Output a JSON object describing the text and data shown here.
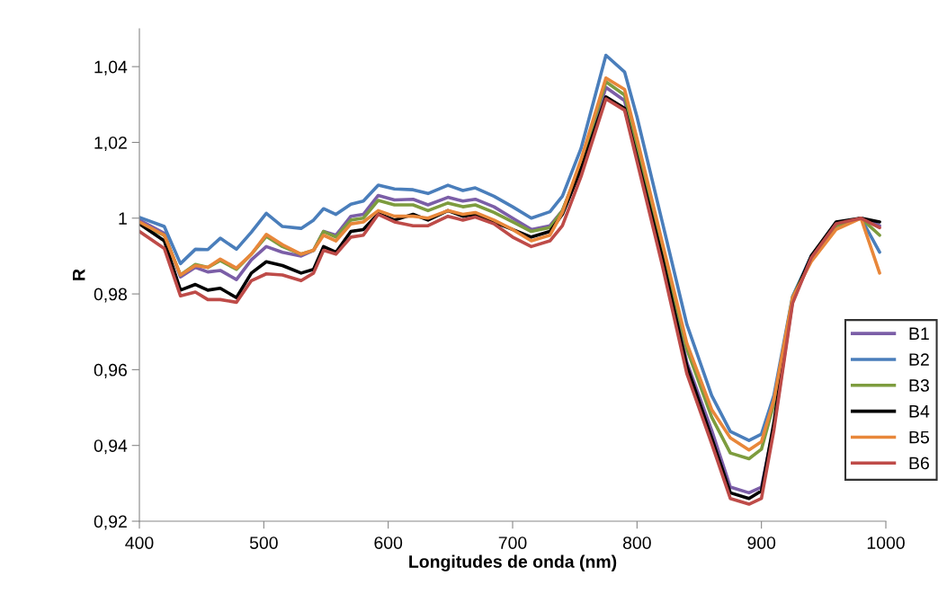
{
  "chart_data": {
    "type": "line",
    "xlabel": "Longitudes de onda (nm)",
    "ylabel": "R",
    "x": [
      400,
      420,
      433,
      445,
      455,
      465,
      478,
      490,
      502,
      515,
      530,
      540,
      548,
      558,
      570,
      580,
      592,
      605,
      620,
      632,
      648,
      660,
      670,
      685,
      700,
      715,
      730,
      740,
      755,
      775,
      790,
      800,
      820,
      840,
      860,
      875,
      890,
      900,
      910,
      925,
      940,
      960,
      980,
      995
    ],
    "series": [
      {
        "name": "B1",
        "color": "#7b5ea7",
        "values": [
          0.9995,
          0.996,
          0.9845,
          0.987,
          0.9858,
          0.9862,
          0.9838,
          0.989,
          0.9925,
          0.991,
          0.99,
          0.9915,
          0.9965,
          0.9955,
          1.0005,
          1.001,
          1.006,
          1.0048,
          1.005,
          1.0035,
          1.0055,
          1.0045,
          1.005,
          1.003,
          1.0,
          0.997,
          0.998,
          1.002,
          1.014,
          1.0345,
          1.031,
          1.0175,
          0.991,
          0.962,
          0.944,
          0.929,
          0.9275,
          0.929,
          0.945,
          0.978,
          0.9895,
          0.998,
          1.0,
          0.998
        ]
      },
      {
        "name": "B2",
        "color": "#4a7ebb",
        "values": [
          1.0002,
          0.9978,
          0.988,
          0.9918,
          0.9917,
          0.9947,
          0.9918,
          0.9963,
          1.0013,
          0.9978,
          0.9973,
          0.9995,
          1.0025,
          1.001,
          1.0037,
          1.0045,
          1.0087,
          1.0077,
          1.0075,
          1.0065,
          1.0087,
          1.0073,
          1.008,
          1.0058,
          1.003,
          1.0,
          1.0017,
          1.0058,
          1.0184,
          1.043,
          1.0386,
          1.0267,
          0.9994,
          0.972,
          0.9532,
          0.9437,
          0.9413,
          0.943,
          0.9532,
          0.9793,
          0.99,
          0.9982,
          1.0,
          0.991
        ]
      },
      {
        "name": "B3",
        "color": "#7d9c3e",
        "values": [
          0.9985,
          0.9955,
          0.985,
          0.9878,
          0.987,
          0.9888,
          0.9865,
          0.9905,
          0.9952,
          0.9925,
          0.9905,
          0.9915,
          0.9965,
          0.995,
          0.9995,
          1.0,
          1.0047,
          1.0035,
          1.0035,
          1.002,
          1.004,
          1.003,
          1.0035,
          1.0015,
          0.999,
          0.9965,
          0.9975,
          1.002,
          1.0145,
          1.036,
          1.0325,
          1.019,
          0.9925,
          0.9655,
          0.9475,
          0.938,
          0.9365,
          0.939,
          0.951,
          0.979,
          0.9895,
          0.998,
          1.0,
          0.9955
        ]
      },
      {
        "name": "B4",
        "color": "#000000",
        "values": [
          0.9985,
          0.994,
          0.981,
          0.9825,
          0.981,
          0.9815,
          0.979,
          0.9855,
          0.9885,
          0.9875,
          0.9855,
          0.9865,
          0.9925,
          0.991,
          0.9965,
          0.997,
          1.0012,
          0.9995,
          1.001,
          0.9995,
          1.002,
          1.0005,
          1.001,
          0.999,
          0.997,
          0.995,
          0.9965,
          1.001,
          1.013,
          1.032,
          1.029,
          1.016,
          0.99,
          0.961,
          0.942,
          0.9275,
          0.926,
          0.928,
          0.946,
          0.9785,
          0.99,
          0.999,
          1.0,
          0.999
        ]
      },
      {
        "name": "B5",
        "color": "#e8873a",
        "values": [
          0.999,
          0.9955,
          0.985,
          0.9875,
          0.987,
          0.9892,
          0.9868,
          0.9905,
          0.9957,
          0.993,
          0.9905,
          0.9915,
          0.9955,
          0.994,
          0.9985,
          0.999,
          1.002,
          1.0005,
          1.0005,
          1.0,
          1.002,
          1.001,
          1.0015,
          0.9995,
          0.997,
          0.994,
          0.9955,
          1.0015,
          1.0155,
          1.037,
          1.034,
          1.021,
          0.994,
          0.967,
          0.9495,
          0.942,
          0.9388,
          0.941,
          0.952,
          0.979,
          0.9885,
          0.997,
          1.0,
          0.9855
        ]
      },
      {
        "name": "B6",
        "color": "#be4b48",
        "values": [
          0.9965,
          0.992,
          0.9795,
          0.9805,
          0.9785,
          0.9785,
          0.9778,
          0.9835,
          0.9853,
          0.985,
          0.9835,
          0.9855,
          0.9915,
          0.9905,
          0.995,
          0.9955,
          1.001,
          0.999,
          0.998,
          0.998,
          1.0005,
          0.9995,
          1.0003,
          0.9985,
          0.995,
          0.9925,
          0.994,
          0.998,
          1.011,
          1.0315,
          1.0285,
          1.015,
          0.988,
          0.959,
          0.9405,
          0.926,
          0.9245,
          0.926,
          0.944,
          0.9775,
          0.9895,
          0.9985,
          1.0,
          0.9975
        ]
      }
    ],
    "xlim": [
      400,
      1000
    ],
    "xticks": [
      400,
      500,
      600,
      700,
      800,
      900,
      1000
    ],
    "ylim": [
      0.92,
      1.05
    ],
    "yticks": [
      {
        "value": 0.92,
        "label": "0,92"
      },
      {
        "value": 0.94,
        "label": "0,94"
      },
      {
        "value": 0.96,
        "label": "0,96"
      },
      {
        "value": 0.98,
        "label": "0,98"
      },
      {
        "value": 1,
        "label": "1"
      },
      {
        "value": 1.02,
        "label": "1,02"
      },
      {
        "value": 1.04,
        "label": "1,04"
      }
    ],
    "grid": false,
    "legend": "right",
    "marker": "none",
    "line_style": "solid"
  }
}
